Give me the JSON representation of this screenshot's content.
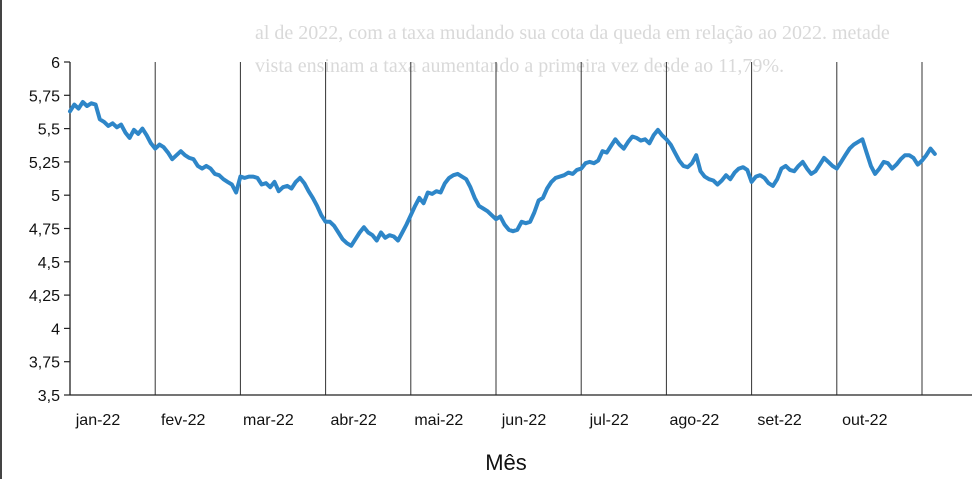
{
  "background_text": {
    "line1": "al de 2022, com a taxa mudando sua cota da queda em relação ao 2022. metade",
    "line2": "vista ensinam a taxa aumentando a primeira vez desde ao 11,79%."
  },
  "chart_data": {
    "type": "line",
    "title": "",
    "xlabel": "Mês",
    "ylabel": "",
    "ylim": [
      3.5,
      6
    ],
    "yticks": [
      "3,5",
      "3,75",
      "4",
      "4,25",
      "4,5",
      "4,75",
      "5",
      "5,25",
      "5,5",
      "5,75",
      "6"
    ],
    "categories": [
      "jan-22",
      "fev-22",
      "mar-22",
      "abr-22",
      "mai-22",
      "jun-22",
      "jul-22",
      "ago-22",
      "set-22",
      "out-22"
    ],
    "line_color": "#2e86c8",
    "series": [
      {
        "x": [
          0.0,
          0.05,
          0.1,
          0.15,
          0.2,
          0.25,
          0.3,
          0.35,
          0.4,
          0.45,
          0.5,
          0.55,
          0.6,
          0.65,
          0.7,
          0.75,
          0.8,
          0.85,
          0.9,
          0.95,
          1.0,
          1.05,
          1.1,
          1.15,
          1.2,
          1.25,
          1.3,
          1.35,
          1.4,
          1.45,
          1.5,
          1.55,
          1.6,
          1.65,
          1.7,
          1.75,
          1.8,
          1.85,
          1.9,
          1.95,
          2.0,
          2.05,
          2.1,
          2.15,
          2.2,
          2.25,
          2.3,
          2.35,
          2.4,
          2.45,
          2.5,
          2.55,
          2.6,
          2.65,
          2.7,
          2.75,
          2.8,
          2.85,
          2.9,
          2.95,
          3.0,
          3.05,
          3.1,
          3.15,
          3.2,
          3.25,
          3.3,
          3.35,
          3.4,
          3.45,
          3.5,
          3.55,
          3.6,
          3.65,
          3.7,
          3.75,
          3.8,
          3.85,
          3.9,
          3.95,
          4.0,
          4.05,
          4.1,
          4.15,
          4.2,
          4.25,
          4.3,
          4.35,
          4.4,
          4.45,
          4.5,
          4.55,
          4.6,
          4.65,
          4.7,
          4.75,
          4.8,
          4.85,
          4.9,
          4.95,
          5.0,
          5.05,
          5.1,
          5.15,
          5.2,
          5.25,
          5.3,
          5.35,
          5.4,
          5.45,
          5.5,
          5.55,
          5.6,
          5.65,
          5.7,
          5.75,
          5.8,
          5.85,
          5.9,
          5.95,
          6.0,
          6.05,
          6.1,
          6.15,
          6.2,
          6.25,
          6.3,
          6.35,
          6.4,
          6.45,
          6.5,
          6.55,
          6.6,
          6.65,
          6.7,
          6.75,
          6.8,
          6.85,
          6.9,
          6.95,
          7.0,
          7.05,
          7.1,
          7.15,
          7.2,
          7.25,
          7.3,
          7.35,
          7.4,
          7.45,
          7.5,
          7.55,
          7.6,
          7.65,
          7.7,
          7.75,
          7.8,
          7.85,
          7.9,
          7.95,
          8.0,
          8.05,
          8.1,
          8.15,
          8.2,
          8.25,
          8.3,
          8.35,
          8.4,
          8.45,
          8.5,
          8.55,
          8.6,
          8.65,
          8.7,
          8.75,
          8.8,
          8.85,
          8.9,
          8.95,
          9.0,
          9.05,
          9.1,
          9.15,
          9.2,
          9.25,
          9.3,
          9.35,
          9.4,
          9.45,
          9.5,
          9.55,
          9.6,
          9.65,
          9.7,
          9.75,
          9.8,
          9.85,
          9.9,
          9.95,
          10.0,
          10.05,
          10.1,
          10.15
        ],
        "y": [
          5.63,
          5.68,
          5.65,
          5.7,
          5.67,
          5.69,
          5.68,
          5.57,
          5.55,
          5.52,
          5.54,
          5.51,
          5.53,
          5.47,
          5.43,
          5.49,
          5.46,
          5.5,
          5.45,
          5.39,
          5.35,
          5.38,
          5.36,
          5.32,
          5.27,
          5.3,
          5.33,
          5.3,
          5.28,
          5.27,
          5.22,
          5.2,
          5.22,
          5.2,
          5.16,
          5.15,
          5.12,
          5.1,
          5.08,
          5.02,
          5.14,
          5.13,
          5.14,
          5.14,
          5.13,
          5.08,
          5.09,
          5.06,
          5.1,
          5.03,
          5.06,
          5.07,
          5.05,
          5.1,
          5.13,
          5.09,
          5.03,
          4.98,
          4.92,
          4.85,
          4.8,
          4.8,
          4.77,
          4.72,
          4.67,
          4.64,
          4.62,
          4.67,
          4.72,
          4.76,
          4.72,
          4.7,
          4.66,
          4.72,
          4.68,
          4.7,
          4.69,
          4.66,
          4.72,
          4.78,
          4.85,
          4.92,
          4.98,
          4.94,
          5.02,
          5.01,
          5.03,
          5.02,
          5.09,
          5.13,
          5.15,
          5.16,
          5.14,
          5.12,
          5.06,
          4.98,
          4.92,
          4.9,
          4.88,
          4.85,
          4.82,
          4.84,
          4.78,
          4.74,
          4.73,
          4.74,
          4.8,
          4.79,
          4.8,
          4.87,
          4.96,
          4.98,
          5.05,
          5.1,
          5.13,
          5.14,
          5.15,
          5.17,
          5.16,
          5.19,
          5.2,
          5.24,
          5.25,
          5.24,
          5.26,
          5.33,
          5.32,
          5.37,
          5.42,
          5.38,
          5.35,
          5.4,
          5.44,
          5.43,
          5.41,
          5.42,
          5.39,
          5.45,
          5.49,
          5.45,
          5.42,
          5.38,
          5.32,
          5.26,
          5.22,
          5.21,
          5.24,
          5.3,
          5.18,
          5.14,
          5.12,
          5.11,
          5.08,
          5.11,
          5.15,
          5.12,
          5.17,
          5.2,
          5.21,
          5.19,
          5.1,
          5.14,
          5.15,
          5.13,
          5.09,
          5.07,
          5.12,
          5.2,
          5.22,
          5.19,
          5.18,
          5.22,
          5.25,
          5.2,
          5.16,
          5.18,
          5.23,
          5.28,
          5.25,
          5.22,
          5.2,
          5.25,
          5.3,
          5.35,
          5.38,
          5.4,
          5.42,
          5.32,
          5.22,
          5.16,
          5.2,
          5.25,
          5.24,
          5.2,
          5.23,
          5.27,
          5.3,
          5.3,
          5.28,
          5.23,
          5.26,
          5.3,
          5.35,
          5.31
        ]
      }
    ],
    "grid": "vertical lines at month boundaries",
    "legend": "none"
  }
}
